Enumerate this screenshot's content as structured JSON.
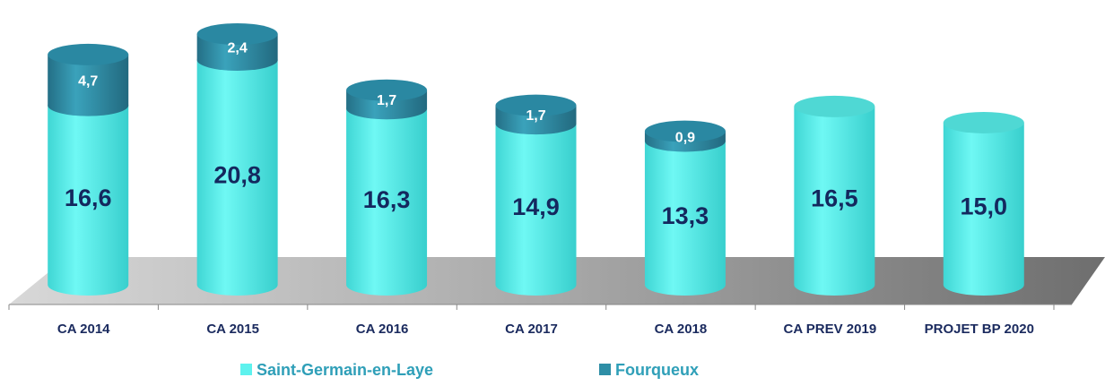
{
  "chart_data": {
    "type": "bar",
    "stacked": true,
    "categories": [
      "CA 2014",
      "CA 2015",
      "CA 2016",
      "CA 2017",
      "CA 2018",
      "CA PREV 2019",
      "PROJET BP 2020"
    ],
    "series": [
      {
        "name": "Saint-Germain-en-Laye",
        "color": "#5ef2ee",
        "values": [
          16.6,
          20.8,
          16.3,
          14.9,
          13.3,
          16.5,
          15.0
        ],
        "value_labels": [
          "16,6",
          "20,8",
          "16,3",
          "14,9",
          "13,3",
          "16,5",
          "15,0"
        ]
      },
      {
        "name": "Fourqueux",
        "color": "#2e8ea6",
        "values": [
          4.7,
          2.4,
          1.7,
          1.7,
          0.9,
          null,
          null
        ],
        "value_labels": [
          "4,7",
          "2,4",
          "1,7",
          "1,7",
          "0,9",
          null,
          null
        ]
      }
    ]
  }
}
